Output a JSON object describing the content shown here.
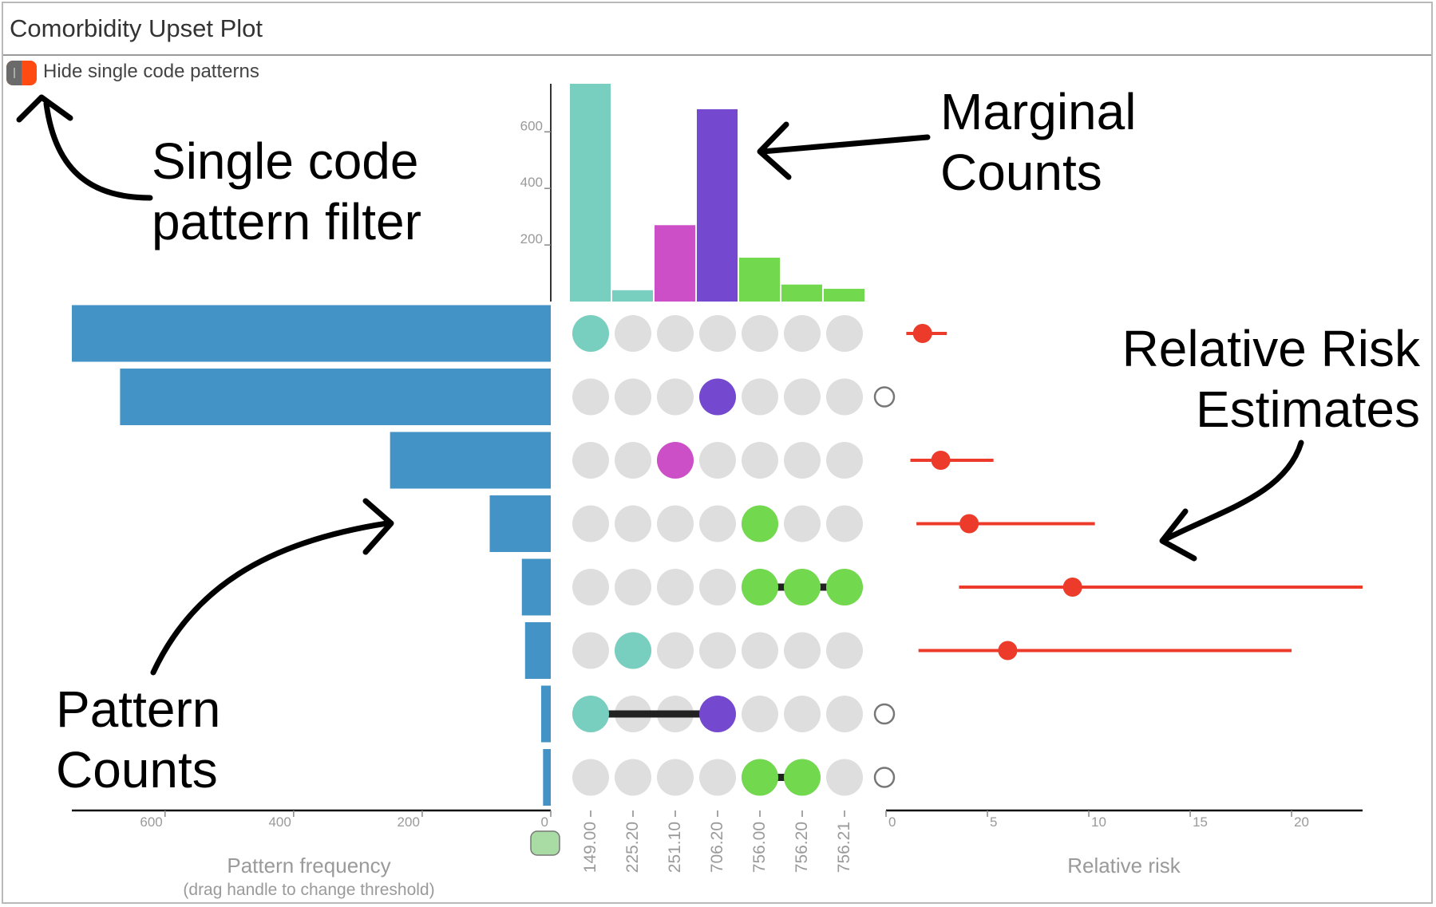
{
  "window": {
    "title": "Comorbidity Upset Plot"
  },
  "filter": {
    "label": "Hide single code patterns",
    "enabled": true
  },
  "annotations": {
    "filter": [
      "Single code",
      "pattern filter"
    ],
    "marginal": [
      "Marginal",
      "Counts"
    ],
    "risk": [
      "Relative Risk",
      "Estimates"
    ],
    "pattern": [
      "Pattern",
      "Counts"
    ]
  },
  "colors": {
    "teal": "#79cfbf",
    "magenta": "#cd4fc7",
    "purple": "#7549cf",
    "green": "#72d84d",
    "blue": "#4393c6",
    "red": "#ec3b2b",
    "inactive": "#dedede",
    "connector": "#222222"
  },
  "chart_data": {
    "type": "upset",
    "codes": [
      "149.00",
      "225.20",
      "251.10",
      "706.20",
      "756.00",
      "756.20",
      "756.21"
    ],
    "code_colors": [
      "#79cfbf",
      "#79cfbf",
      "#cd4fc7",
      "#7549cf",
      "#72d84d",
      "#72d84d",
      "#72d84d"
    ],
    "marginal_counts": {
      "values": [
        770,
        40,
        270,
        680,
        155,
        60,
        45
      ],
      "yticks": [
        200,
        400,
        600
      ],
      "ylim": [
        0,
        770
      ]
    },
    "patterns": [
      {
        "codes": [
          0
        ],
        "count": 745,
        "rr": {
          "est": 1.8,
          "lo": 1.0,
          "hi": 3.0
        }
      },
      {
        "codes": [
          3
        ],
        "count": 670,
        "rr": null
      },
      {
        "codes": [
          2
        ],
        "count": 250,
        "rr": {
          "est": 2.7,
          "lo": 1.2,
          "hi": 5.3
        }
      },
      {
        "codes": [
          4
        ],
        "count": 95,
        "rr": {
          "est": 4.1,
          "lo": 1.5,
          "hi": 10.3
        }
      },
      {
        "codes": [
          4,
          5,
          6
        ],
        "count": 45,
        "rr": {
          "est": 9.2,
          "lo": 3.6,
          "hi": 23.5
        }
      },
      {
        "codes": [
          1
        ],
        "count": 40,
        "rr": {
          "est": 6.0,
          "lo": 1.6,
          "hi": 20.0
        }
      },
      {
        "codes": [
          0,
          3
        ],
        "count": 15,
        "rr": null
      },
      {
        "codes": [
          4,
          5
        ],
        "count": 12,
        "rr": null
      }
    ],
    "pattern_axis": {
      "label": "Pattern frequency",
      "sublabel": "(drag handle to change threshold)",
      "ticks": [
        0,
        200,
        400,
        600
      ]
    },
    "risk_axis": {
      "label": "Relative risk",
      "ticks": [
        0,
        5,
        10,
        15,
        20
      ],
      "xlim": [
        0,
        23.5
      ]
    }
  }
}
